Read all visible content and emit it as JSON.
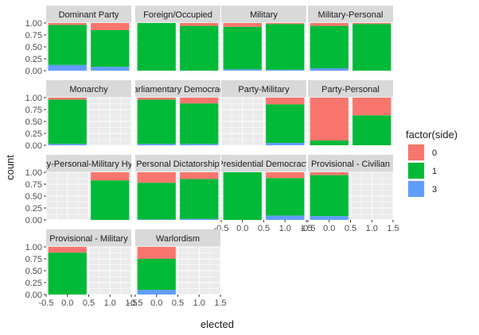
{
  "chart_data": {
    "type": "bar",
    "position": "fill",
    "facet_layout": "wrap",
    "facet_columns": 4,
    "xlabel": "elected",
    "ylabel": "count",
    "xlim": [
      -0.5,
      1.5
    ],
    "ylim": [
      0,
      1
    ],
    "x_ticks": [
      "-0.5",
      "0.0",
      "0.5",
      "1.0",
      "1.5"
    ],
    "y_ticks": [
      "0.00",
      "0.25",
      "0.50",
      "0.75",
      "1.00"
    ],
    "legend": {
      "title": "factor(side)",
      "placement": "right",
      "entries": [
        {
          "label": "0",
          "color": "#F8766D"
        },
        {
          "label": "1",
          "color": "#00BA38"
        },
        {
          "label": "3",
          "color": "#619CFF"
        }
      ]
    },
    "panel_background": "#EBEBEB",
    "strip_background": "#D9D9D9",
    "grid": true,
    "panels": [
      {
        "title": "Dominant Party",
        "bars": [
          {
            "x": 0,
            "shares": {
              "0": 0.04,
              "1": 0.84,
              "3": 0.12
            }
          },
          {
            "x": 1,
            "shares": {
              "0": 0.15,
              "1": 0.77,
              "3": 0.08
            }
          }
        ]
      },
      {
        "title": "Foreign/Occupied",
        "bars": [
          {
            "x": 0,
            "shares": {
              "0": 0.0,
              "1": 1.0,
              "3": 0.0
            }
          },
          {
            "x": 1,
            "shares": {
              "0": 0.06,
              "1": 0.94,
              "3": 0.0
            }
          }
        ]
      },
      {
        "title": "Military",
        "bars": [
          {
            "x": 0,
            "shares": {
              "0": 0.08,
              "1": 0.89,
              "3": 0.03
            }
          },
          {
            "x": 1,
            "shares": {
              "0": 0.02,
              "1": 0.96,
              "3": 0.02
            }
          }
        ]
      },
      {
        "title": "Military-Personal",
        "bars": [
          {
            "x": 0,
            "shares": {
              "0": 0.06,
              "1": 0.89,
              "3": 0.05
            }
          },
          {
            "x": 1,
            "shares": {
              "0": 0.02,
              "1": 0.98,
              "3": 0.0
            }
          }
        ]
      },
      {
        "title": "Monarchy",
        "bars": [
          {
            "x": 0,
            "shares": {
              "0": 0.04,
              "1": 0.93,
              "3": 0.03
            }
          }
        ]
      },
      {
        "title": "Parliamentary Democracy",
        "bars": [
          {
            "x": 0,
            "shares": {
              "0": 0.04,
              "1": 0.93,
              "3": 0.03
            }
          },
          {
            "x": 1,
            "shares": {
              "0": 0.12,
              "1": 0.85,
              "3": 0.03
            }
          }
        ]
      },
      {
        "title": "Party-Military",
        "bars": [
          {
            "x": 1,
            "shares": {
              "0": 0.14,
              "1": 0.81,
              "3": 0.05
            }
          }
        ]
      },
      {
        "title": "Party-Personal",
        "bars": [
          {
            "x": 0,
            "shares": {
              "0": 0.9,
              "1": 0.1,
              "3": 0.0
            }
          },
          {
            "x": 1,
            "shares": {
              "0": 0.37,
              "1": 0.63,
              "3": 0.0
            }
          }
        ]
      },
      {
        "title": "Party-Personal-Military Hybrid",
        "bars": [
          {
            "x": 1,
            "shares": {
              "0": 0.17,
              "1": 0.83,
              "3": 0.0
            }
          }
        ]
      },
      {
        "title": "Personal Dictatorship",
        "bars": [
          {
            "x": 0,
            "shares": {
              "0": 0.22,
              "1": 0.77,
              "3": 0.01
            }
          },
          {
            "x": 1,
            "shares": {
              "0": 0.14,
              "1": 0.84,
              "3": 0.02
            }
          }
        ]
      },
      {
        "title": "Presidential Democracy",
        "bars": [
          {
            "x": 0,
            "shares": {
              "0": 0.0,
              "1": 1.0,
              "3": 0.0
            }
          },
          {
            "x": 1,
            "shares": {
              "0": 0.12,
              "1": 0.79,
              "3": 0.09
            }
          }
        ]
      },
      {
        "title": "Provisional - Civilian",
        "bars": [
          {
            "x": 0,
            "shares": {
              "0": 0.06,
              "1": 0.86,
              "3": 0.08
            }
          }
        ]
      },
      {
        "title": "Provisional - Military",
        "bars": [
          {
            "x": 0,
            "shares": {
              "0": 0.12,
              "1": 0.88,
              "3": 0.0
            }
          }
        ]
      },
      {
        "title": "Warlordism",
        "bars": [
          {
            "x": 0,
            "shares": {
              "0": 0.25,
              "1": 0.65,
              "3": 0.1
            }
          }
        ]
      }
    ]
  }
}
